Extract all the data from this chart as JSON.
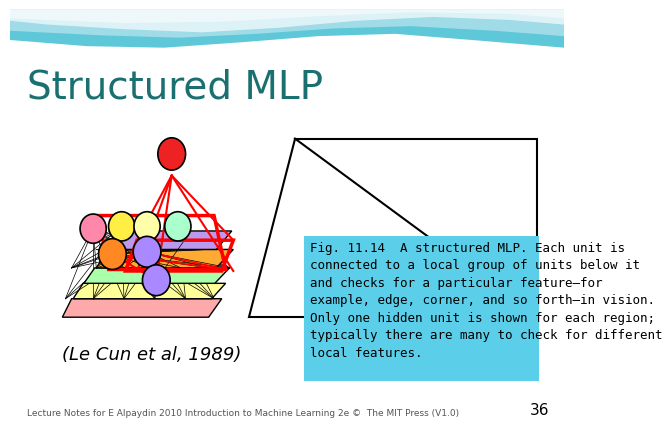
{
  "title": "Structured MLP",
  "title_color": "#1a7070",
  "title_fontsize": 28,
  "caption_text": "Fig. 11.14  A structured MLP. Each unit is\nconnected to a local group of units below it\nand checks for a particular feature—for\nexample, edge, corner, and so forth–in vision.\nOnly one hidden unit is shown for each region;\ntypically there are many to check for different\nlocal features.",
  "caption_bg": "#5bcfea",
  "source_text": "Lecture Notes for E Alpaydin 2010 Introduction to Machine Learning 2e ©  The MIT Press (V1.0)",
  "page_number": "36",
  "author_text": "(Le Cun et al, 1989)",
  "bg_color": "#ffffff",
  "header_teal": "#50c8d8",
  "header_light": "#a8e8f0"
}
